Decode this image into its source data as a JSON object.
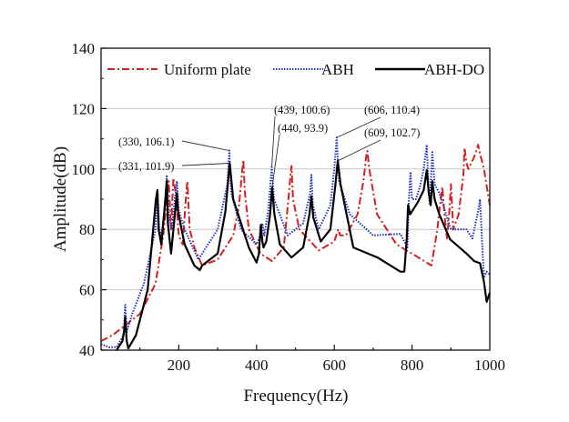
{
  "chart_data": {
    "type": "line",
    "title": "",
    "xlabel": "Frequency(Hz)",
    "ylabel": "Amplitude(dB)",
    "xlim": [
      0,
      1000
    ],
    "ylim": [
      40,
      140
    ],
    "xticks": [
      200,
      400,
      600,
      800,
      1000
    ],
    "yticks": [
      40,
      60,
      80,
      100,
      120,
      140
    ],
    "grid": "horizontal",
    "legend_position": "top",
    "series": [
      {
        "name": "Uniform plate",
        "color": "#d42020",
        "style": "dashdot",
        "x": [
          0,
          30,
          60,
          100,
          140,
          160,
          168,
          174,
          180,
          186,
          192,
          200,
          210,
          218,
          222,
          228,
          240,
          260,
          300,
          340,
          355,
          362,
          366,
          370,
          380,
          410,
          440,
          470,
          482,
          488,
          490,
          494,
          510,
          560,
          600,
          610,
          615,
          630,
          660,
          675,
          682,
          685,
          690,
          710,
          760,
          800,
          850,
          865,
          872,
          878,
          884,
          890,
          896,
          900,
          906,
          920,
          932,
          935,
          940,
          945,
          960,
          970,
          975,
          985,
          1000
        ],
        "y": [
          43,
          45,
          48,
          52,
          62,
          78,
          88,
          96,
          80,
          97,
          92,
          78,
          75,
          90,
          96,
          80,
          74,
          68,
          70,
          78,
          88,
          98,
          103,
          92,
          80,
          72,
          69.5,
          74,
          90,
          99,
          101,
          90,
          80,
          73,
          76,
          80,
          78,
          78,
          85,
          96,
          104,
          106,
          100,
          85,
          75,
          72,
          68,
          80,
          88,
          94,
          84,
          77,
          86,
          95,
          80,
          85,
          98,
          107,
          102,
          100,
          104,
          108,
          105,
          100,
          88
        ]
      },
      {
        "name": "ΑBH",
        "color": "#2030c0",
        "style": "dotted",
        "x": [
          0,
          20,
          40,
          58,
          62,
          66,
          80,
          110,
          140,
          145,
          150,
          155,
          165,
          169,
          174,
          182,
          190,
          195,
          200,
          215,
          250,
          300,
          325,
          330,
          335,
          360,
          400,
          410,
          415,
          420,
          430,
          439,
          445,
          480,
          520,
          538,
          541,
          545,
          560,
          590,
          600,
          606,
          612,
          640,
          700,
          770,
          788,
          792,
          796,
          800,
          810,
          820,
          830,
          838,
          842,
          846,
          852,
          858,
          870,
          900,
          940,
          955,
          970,
          975,
          980,
          985,
          992,
          1000
        ],
        "y": [
          42,
          41,
          41,
          45,
          55,
          46,
          52,
          62,
          80,
          93,
          80,
          78,
          88,
          98,
          84,
          80,
          90,
          96,
          86,
          80,
          70,
          80,
          95,
          106.1,
          92,
          80,
          75,
          78,
          82,
          78,
          86,
          100.6,
          90,
          78,
          82,
          92,
          98,
          88,
          80,
          88,
          100,
          110.4,
          96,
          85,
          78,
          78.5,
          74,
          90,
          99,
          90,
          90,
          94,
          100,
          108,
          95,
          88,
          106,
          95,
          92,
          80,
          80,
          77,
          86,
          90,
          76,
          64,
          66,
          65
        ]
      },
      {
        "name": "ΑBH-DO",
        "color": "#000000",
        "style": "solid",
        "x": [
          40,
          55,
          60,
          62,
          64,
          66,
          70,
          90,
          120,
          141,
          145,
          148,
          155,
          162,
          169,
          172,
          180,
          190,
          195,
          198,
          215,
          240,
          254,
          260,
          300,
          320,
          331,
          340,
          380,
          400,
          406,
          411,
          415,
          418,
          425,
          435,
          440,
          446,
          460,
          490,
          520,
          536,
          541,
          546,
          565,
          590,
          603,
          609,
          616,
          649,
          711,
          770,
          780,
          786,
          790,
          795,
          800,
          815,
          830,
          838,
          843,
          848,
          852,
          858,
          870,
          898,
          940,
          960,
          975,
          985,
          992,
          1000
        ],
        "y": [
          40,
          43,
          47,
          51,
          47,
          43,
          40.6,
          45,
          60,
          89.7,
          93,
          80,
          75,
          85,
          96,
          82,
          72,
          85,
          92,
          86,
          75,
          68,
          66.5,
          68,
          72,
          86,
          101.9,
          90,
          74,
          69,
          72,
          81.5,
          76,
          74,
          76,
          85,
          93.9,
          85,
          75,
          70.7,
          74,
          85,
          91,
          84,
          76,
          80,
          95,
          102.7,
          95,
          74,
          70.7,
          66,
          66,
          76,
          88,
          85,
          86,
          89,
          93,
          99.6,
          92,
          88,
          96,
          90,
          85,
          76.7,
          72,
          69.5,
          68.8,
          62.6,
          56,
          59
        ]
      }
    ],
    "annotations": [
      {
        "text": "(330, 106.1)",
        "x": 330,
        "y": 106.1
      },
      {
        "text": "(331, 101.9)",
        "x": 331,
        "y": 101.9
      },
      {
        "text": "(439, 100.6)",
        "x": 439,
        "y": 100.6
      },
      {
        "text": "(440, 93.9)",
        "x": 440,
        "y": 93.9
      },
      {
        "text": "(606, 110.4)",
        "x": 606,
        "y": 110.4
      },
      {
        "text": "(609, 102.7)",
        "x": 609,
        "y": 102.7
      }
    ]
  }
}
